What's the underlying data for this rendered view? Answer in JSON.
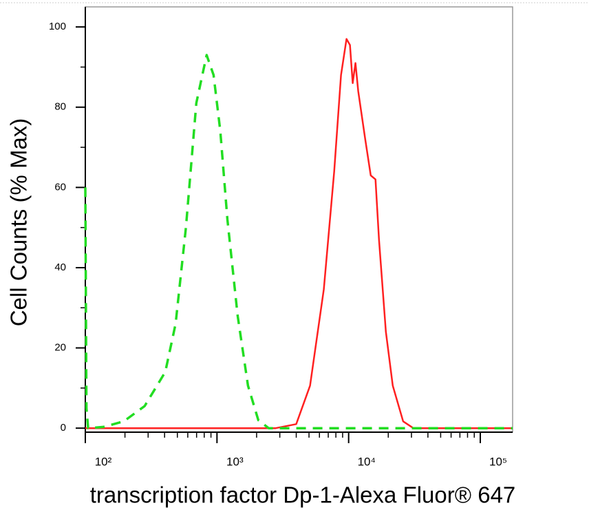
{
  "chart_data": {
    "type": "line",
    "x_label": "transcription factor Dp-1-Alexa Fluor® 647",
    "y_label": "Cell Counts (% Max)",
    "xscale": "log",
    "xlim": [
      100,
      176000
    ],
    "ylim": [
      -1,
      105
    ],
    "xticks": [
      {
        "value": 100,
        "label": "10²"
      },
      {
        "value": 1000,
        "label": "10³"
      },
      {
        "value": 10000,
        "label": "10⁴"
      },
      {
        "value": 100000,
        "label": "10⁵"
      }
    ],
    "xminorticks": [
      200,
      300,
      400,
      500,
      600,
      700,
      800,
      900,
      2000,
      3000,
      4000,
      5000,
      6000,
      7000,
      8000,
      9000,
      20000,
      30000,
      40000,
      50000,
      60000,
      70000,
      80000,
      90000
    ],
    "yticks": [
      0,
      20,
      40,
      60,
      80,
      100
    ],
    "yminorticks": [
      10,
      30,
      50,
      70,
      90
    ],
    "grid": false,
    "series": [
      {
        "color": "#ff2020",
        "dash": false,
        "x": [
          100,
          2790,
          4000,
          5090,
          6480,
          7770,
          8750,
          9640,
          10230,
          10740,
          11270,
          11830,
          13360,
          14720,
          16000,
          17000,
          19170,
          21640,
          25930,
          31050,
          176000
        ],
        "values": [
          0,
          0,
          1,
          10.6,
          34.6,
          64,
          88,
          97,
          95.5,
          86,
          91,
          84,
          72,
          63,
          62,
          47,
          24,
          10.6,
          1.7,
          0,
          0
        ]
      },
      {
        "color": "#22dd22",
        "dash": true,
        "x": [
          100,
          102,
          105,
          137,
          196,
          282,
          405,
          485,
          581,
          697,
          834,
          942,
          1060,
          1200,
          1436,
          1720,
          2060,
          2470,
          176000
        ],
        "values": [
          60,
          5,
          0,
          0.3,
          1.7,
          5.5,
          14,
          26,
          50,
          81,
          93,
          88,
          74,
          52,
          28,
          10.6,
          2,
          0,
          0
        ]
      }
    ]
  }
}
